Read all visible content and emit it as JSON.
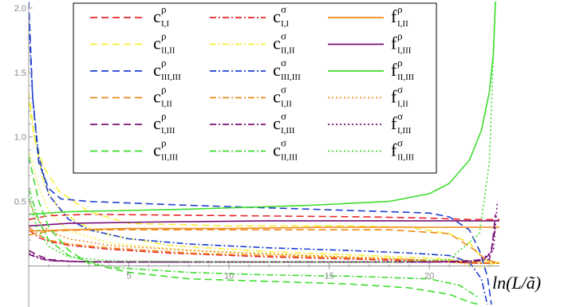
{
  "chart_data": {
    "type": "line",
    "title": "",
    "xlabel": "ln(L/ã)",
    "ylabel": "",
    "xlim": [
      0,
      23.5
    ],
    "ylim": [
      -0.3,
      2.0
    ],
    "x_ticks": [
      5,
      10,
      15,
      20
    ],
    "y_ticks": [
      0.5,
      1.0,
      1.5,
      2.0
    ],
    "x_tick_labels": [
      "5",
      "10",
      "15",
      "20"
    ],
    "y_tick_labels": [
      "0.5",
      "1.0",
      "1.5",
      "2.0"
    ],
    "grid": false,
    "legend_position": "top",
    "colors": {
      "red": "#e8262a",
      "yellow": "#f4ee3c",
      "blue": "#1f3fd0",
      "orange": "#ee8a1c",
      "purple": "#7a1078",
      "green": "#3fdc2e",
      "axis": "#999999"
    },
    "legend": [
      {
        "main": "c",
        "sup": "ρ",
        "sub": "I,I",
        "color": "red",
        "dash": "dashed"
      },
      {
        "main": "c",
        "sup": "σ",
        "sub": "I,I",
        "color": "red",
        "dash": "dashdot"
      },
      {
        "main": "f",
        "sup": "ρ",
        "sub": "I,II",
        "color": "orange",
        "dash": "solid"
      },
      {
        "main": "c",
        "sup": "ρ",
        "sub": "II,II",
        "color": "yellow",
        "dash": "dashed"
      },
      {
        "main": "c",
        "sup": "σ",
        "sub": "II,II",
        "color": "yellow",
        "dash": "dashdot"
      },
      {
        "main": "f",
        "sup": "ρ",
        "sub": "I,III",
        "color": "purple",
        "dash": "solid"
      },
      {
        "main": "c",
        "sup": "ρ",
        "sub": "III,III",
        "color": "blue",
        "dash": "dashed"
      },
      {
        "main": "c",
        "sup": "σ",
        "sub": "III,III",
        "color": "blue",
        "dash": "dashdot"
      },
      {
        "main": "f",
        "sup": "ρ",
        "sub": "II,III",
        "color": "green",
        "dash": "solid"
      },
      {
        "main": "c",
        "sup": "ρ",
        "sub": "I,II",
        "color": "orange",
        "dash": "dashed"
      },
      {
        "main": "c",
        "sup": "σ",
        "sub": "I,II",
        "color": "orange",
        "dash": "dashdot"
      },
      {
        "main": "f",
        "sup": "σ",
        "sub": "I,II",
        "color": "orange",
        "dash": "dotted"
      },
      {
        "main": "c",
        "sup": "ρ",
        "sub": "I,III",
        "color": "purple",
        "dash": "dashed"
      },
      {
        "main": "c",
        "sup": "σ",
        "sub": "I,III",
        "color": "purple",
        "dash": "dashdot"
      },
      {
        "main": "f",
        "sup": "σ",
        "sub": "I,III",
        "color": "purple",
        "dash": "dotted"
      },
      {
        "main": "c",
        "sup": "ρ",
        "sub": "II,III",
        "color": "green",
        "dash": "dashed"
      },
      {
        "main": "c",
        "sup": "σ",
        "sub": "II,III",
        "color": "green",
        "dash": "dashdot"
      },
      {
        "main": "f",
        "sup": "σ",
        "sub": "II,III",
        "color": "green",
        "dash": "dotted"
      }
    ],
    "series": [
      {
        "color": "red",
        "dash": "dashed",
        "points": [
          [
            0,
            0.36
          ],
          [
            1,
            0.39
          ],
          [
            3,
            0.4
          ],
          [
            10,
            0.39
          ],
          [
            17,
            0.38
          ],
          [
            20,
            0.37
          ],
          [
            22,
            0.36
          ],
          [
            23,
            0.36
          ],
          [
            23.5,
            0.36
          ]
        ]
      },
      {
        "color": "red",
        "dash": "dashdot",
        "points": [
          [
            0,
            0.28
          ],
          [
            0.5,
            0.22
          ],
          [
            1,
            0.19
          ],
          [
            2,
            0.16
          ],
          [
            4,
            0.13
          ],
          [
            7,
            0.1
          ],
          [
            12,
            0.07
          ],
          [
            17,
            0.05
          ],
          [
            21,
            0.03
          ],
          [
            22.5,
            0.02
          ],
          [
            23.5,
            0.02
          ]
        ]
      },
      {
        "color": "yellow",
        "dash": "dashed",
        "points": [
          [
            0,
            1.35
          ],
          [
            0.3,
            1.0
          ],
          [
            0.7,
            0.78
          ],
          [
            1.5,
            0.58
          ],
          [
            3,
            0.42
          ],
          [
            5,
            0.33
          ],
          [
            10,
            0.31
          ],
          [
            16,
            0.31
          ],
          [
            19,
            0.3
          ],
          [
            21,
            0.25
          ],
          [
            22,
            0.18
          ],
          [
            22.7,
            0.05
          ],
          [
            23.5,
            0.02
          ]
        ]
      },
      {
        "color": "yellow",
        "dash": "dashdot",
        "points": [
          [
            0,
            1.28
          ],
          [
            0.3,
            0.98
          ],
          [
            0.8,
            0.62
          ],
          [
            1.5,
            0.44
          ],
          [
            2.5,
            0.33
          ],
          [
            4,
            0.24
          ],
          [
            7,
            0.16
          ],
          [
            12,
            0.11
          ],
          [
            17,
            0.08
          ],
          [
            20,
            0.06
          ],
          [
            22,
            0.04
          ],
          [
            23.5,
            0.02
          ]
        ]
      },
      {
        "color": "yellow",
        "dash": "dotted",
        "points": [
          [
            0,
            0.9
          ],
          [
            0.5,
            0.62
          ],
          [
            1,
            0.42
          ],
          [
            2,
            0.27
          ],
          [
            4,
            0.18
          ],
          [
            8,
            0.12
          ],
          [
            14,
            0.08
          ],
          [
            18,
            0.06
          ],
          [
            20.5,
            0.04
          ],
          [
            22,
            0.01
          ],
          [
            22.6,
            -0.02
          ],
          [
            23.5,
            0.03
          ]
        ]
      },
      {
        "color": "blue",
        "dash": "dashed",
        "points": [
          [
            0,
            2.05
          ],
          [
            0.2,
            1.3
          ],
          [
            0.5,
            0.8
          ],
          [
            1,
            0.6
          ],
          [
            1.6,
            0.52
          ],
          [
            3,
            0.5
          ],
          [
            8,
            0.47
          ],
          [
            14,
            0.44
          ],
          [
            18,
            0.42
          ],
          [
            20,
            0.41
          ],
          [
            21,
            0.38
          ],
          [
            22,
            0.28
          ],
          [
            22.5,
            0.12
          ],
          [
            22.9,
            -0.08
          ],
          [
            23.1,
            -0.3
          ]
        ]
      },
      {
        "color": "blue",
        "dash": "dashdot",
        "points": [
          [
            0,
            1.9
          ],
          [
            0.2,
            1.3
          ],
          [
            0.5,
            0.85
          ],
          [
            1,
            0.55
          ],
          [
            2,
            0.36
          ],
          [
            3,
            0.28
          ],
          [
            5,
            0.21
          ],
          [
            8,
            0.17
          ],
          [
            12,
            0.14
          ],
          [
            16,
            0.12
          ],
          [
            19,
            0.1
          ],
          [
            21,
            0.08
          ],
          [
            22,
            0.03
          ],
          [
            22.6,
            -0.1
          ],
          [
            22.9,
            -0.3
          ]
        ]
      },
      {
        "color": "orange",
        "dash": "solid",
        "points": [
          [
            0,
            0.27
          ],
          [
            2,
            0.28
          ],
          [
            5,
            0.29
          ],
          [
            10,
            0.29
          ],
          [
            15,
            0.3
          ],
          [
            20,
            0.3
          ],
          [
            23.5,
            0.3
          ]
        ]
      },
      {
        "color": "orange",
        "dash": "dashed",
        "points": [
          [
            0,
            0.24
          ],
          [
            1,
            0.27
          ],
          [
            3,
            0.28
          ],
          [
            10,
            0.28
          ],
          [
            18,
            0.28
          ],
          [
            21,
            0.25
          ],
          [
            22.3,
            0.12
          ],
          [
            22.8,
            0.05
          ],
          [
            23.5,
            0.02
          ]
        ]
      },
      {
        "color": "orange",
        "dash": "dashdot",
        "points": [
          [
            0,
            0.3
          ],
          [
            0.5,
            0.24
          ],
          [
            1,
            0.2
          ],
          [
            2,
            0.17
          ],
          [
            4,
            0.14
          ],
          [
            8,
            0.1
          ],
          [
            14,
            0.07
          ],
          [
            19,
            0.05
          ],
          [
            22,
            0.03
          ],
          [
            23.5,
            0.02
          ]
        ]
      },
      {
        "color": "orange",
        "dash": "dotted",
        "points": [
          [
            0,
            0.5
          ],
          [
            0.5,
            0.35
          ],
          [
            1,
            0.27
          ],
          [
            2,
            0.21
          ],
          [
            4,
            0.16
          ],
          [
            8,
            0.12
          ],
          [
            14,
            0.08
          ],
          [
            19,
            0.05
          ],
          [
            22,
            0.02
          ],
          [
            23.5,
            0.02
          ]
        ]
      },
      {
        "color": "purple",
        "dash": "solid",
        "points": [
          [
            0,
            0.31
          ],
          [
            2,
            0.33
          ],
          [
            6,
            0.34
          ],
          [
            12,
            0.35
          ],
          [
            18,
            0.35
          ],
          [
            23.5,
            0.35
          ]
        ]
      },
      {
        "color": "purple",
        "dash": "dashed",
        "points": [
          [
            0,
            0.12
          ],
          [
            0.5,
            0.08
          ],
          [
            1,
            0.05
          ],
          [
            2,
            0.035
          ],
          [
            5,
            0.03
          ],
          [
            10,
            0.03
          ],
          [
            16,
            0.03
          ],
          [
            20,
            0.03
          ],
          [
            22,
            0.04
          ],
          [
            22.7,
            0.05
          ],
          [
            23.1,
            0.1
          ],
          [
            23.3,
            0.4
          ]
        ]
      },
      {
        "color": "purple",
        "dash": "dashdot",
        "points": [
          [
            0,
            0.09
          ],
          [
            0.5,
            0.06
          ],
          [
            1,
            0.04
          ],
          [
            3,
            0.03
          ],
          [
            10,
            0.03
          ],
          [
            18,
            0.03
          ],
          [
            22,
            0.03
          ],
          [
            23,
            0.05
          ],
          [
            23.3,
            0.3
          ]
        ]
      },
      {
        "color": "purple",
        "dash": "dotted",
        "points": [
          [
            0,
            0.1
          ],
          [
            0.6,
            0.06
          ],
          [
            1.2,
            0.04
          ],
          [
            4,
            0.03
          ],
          [
            12,
            0.03
          ],
          [
            20,
            0.03
          ],
          [
            22.5,
            0.04
          ],
          [
            23.2,
            0.12
          ],
          [
            23.4,
            0.5
          ]
        ]
      },
      {
        "color": "green",
        "dash": "solid",
        "points": [
          [
            0,
            0.4
          ],
          [
            2,
            0.42
          ],
          [
            8,
            0.44
          ],
          [
            14,
            0.47
          ],
          [
            18,
            0.5
          ],
          [
            20,
            0.56
          ],
          [
            21,
            0.64
          ],
          [
            22,
            0.82
          ],
          [
            22.6,
            1.05
          ],
          [
            23.0,
            1.35
          ],
          [
            23.2,
            1.65
          ],
          [
            23.3,
            2.05
          ]
        ]
      },
      {
        "color": "green",
        "dash": "dashed",
        "points": [
          [
            0,
            0.85
          ],
          [
            0.5,
            0.5
          ],
          [
            1,
            0.3
          ],
          [
            2,
            0.12
          ],
          [
            3,
            0.02
          ],
          [
            5,
            -0.05
          ],
          [
            8,
            -0.1
          ],
          [
            12,
            -0.12
          ],
          [
            16,
            -0.14
          ],
          [
            19,
            -0.17
          ],
          [
            21,
            -0.22
          ],
          [
            22,
            -0.28
          ],
          [
            22.5,
            -0.3
          ]
        ]
      },
      {
        "color": "green",
        "dash": "dashdot",
        "points": [
          [
            0,
            0.6
          ],
          [
            0.5,
            0.35
          ],
          [
            1,
            0.2
          ],
          [
            2,
            0.08
          ],
          [
            4,
            -0.01
          ],
          [
            8,
            -0.05
          ],
          [
            12,
            -0.07
          ],
          [
            16,
            -0.08
          ],
          [
            20,
            -0.1
          ],
          [
            21.5,
            -0.15
          ],
          [
            22.5,
            -0.25
          ]
        ]
      },
      {
        "color": "green",
        "dash": "dotted",
        "points": [
          [
            0,
            0.55
          ],
          [
            0.4,
            0.3
          ],
          [
            1,
            0.15
          ],
          [
            2,
            0.07
          ],
          [
            4,
            0.04
          ],
          [
            10,
            0.03
          ],
          [
            18,
            0.03
          ],
          [
            21,
            0.05
          ],
          [
            22.5,
            0.25
          ],
          [
            23,
            0.8
          ],
          [
            23.3,
            2.05
          ]
        ]
      }
    ]
  }
}
